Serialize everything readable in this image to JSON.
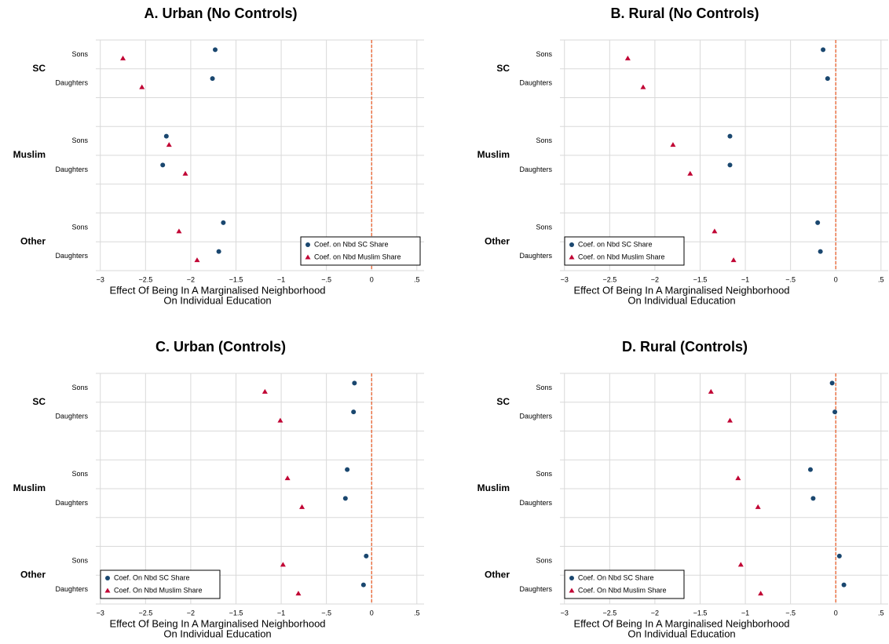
{
  "chart_data": [
    {
      "type": "dot",
      "title": "A. Urban (No Controls)",
      "groups": [
        "SC",
        "Muslim",
        "Other"
      ],
      "categories": [
        "Sons",
        "Daughters",
        "Sons",
        "Daughters",
        "Sons",
        "Daughters"
      ],
      "series": [
        {
          "name": "Coef. on Nbd SC Share",
          "color": "#1a476f",
          "marker": "circle",
          "values": [
            -1.73,
            -1.76,
            -2.27,
            -2.31,
            -1.64,
            -1.69
          ]
        },
        {
          "name": "Coef. on Nbd Muslim Share",
          "color": "#c10534",
          "marker": "triangle",
          "values": [
            -2.75,
            -2.54,
            -2.24,
            -2.06,
            -2.13,
            -1.93
          ]
        }
      ],
      "xlim": [
        -3.05,
        0.58
      ],
      "xticks": [
        {
          "value": -3,
          "label": "−3"
        },
        {
          "value": -2.5,
          "label": "−2.5"
        },
        {
          "value": -2,
          "label": "−2"
        },
        {
          "value": -1.5,
          "label": "−1.5"
        },
        {
          "value": -1,
          "label": "−1"
        },
        {
          "value": -0.5,
          "label": "−.5"
        },
        0,
        {
          "value": 0.5,
          "label": ".5"
        }
      ],
      "xlabel": [
        "Effect Of Being In A Marginalised Neighborhood",
        "On Individual Education"
      ],
      "xline": 0,
      "xline_color": "#e8551e",
      "grid": true,
      "legend": "lower right"
    },
    {
      "type": "dot",
      "title": "B. Rural (No Controls)",
      "groups": [
        "SC",
        "Muslim",
        "Other"
      ],
      "categories": [
        "Sons",
        "Daughters",
        "Sons",
        "Daughters",
        "Sons",
        "Daughters"
      ],
      "series": [
        {
          "name": "Coef. on Nbd SC Share",
          "color": "#1a476f",
          "marker": "circle",
          "values": [
            -0.14,
            -0.09,
            -1.17,
            -1.17,
            -0.2,
            -0.17
          ]
        },
        {
          "name": "Coef. on Nbd Muslim Share",
          "color": "#c10534",
          "marker": "triangle",
          "values": [
            -2.3,
            -2.13,
            -1.8,
            -1.61,
            -1.34,
            -1.13
          ]
        }
      ],
      "xlim": [
        -3.05,
        0.58
      ],
      "xticks": [
        {
          "value": -3,
          "label": "−3"
        },
        {
          "value": -2.5,
          "label": "−2.5"
        },
        {
          "value": -2,
          "label": "−2"
        },
        {
          "value": -1.5,
          "label": "−1.5"
        },
        {
          "value": -1,
          "label": "−1"
        },
        {
          "value": -0.5,
          "label": "−.5"
        },
        0,
        {
          "value": 0.5,
          "label": ".5"
        }
      ],
      "xlabel": [
        "Effect Of Being In A Marginalised Neighborhood",
        "On Individual Education"
      ],
      "xline": 0,
      "xline_color": "#e8551e",
      "grid": true,
      "legend": "lower left"
    },
    {
      "type": "dot",
      "title": "C. Urban (Controls)",
      "groups": [
        "SC",
        "Muslim",
        "Other"
      ],
      "categories": [
        "Sons",
        "Daughters",
        "Sons",
        "Daughters",
        "Sons",
        "Daughters"
      ],
      "series": [
        {
          "name": "Coef. On Nbd SC Share",
          "color": "#1a476f",
          "marker": "circle",
          "values": [
            -0.19,
            -0.2,
            -0.27,
            -0.29,
            -0.06,
            -0.09
          ]
        },
        {
          "name": "Coef. On Nbd Muslim Share",
          "color": "#c10534",
          "marker": "triangle",
          "values": [
            -1.18,
            -1.01,
            -0.93,
            -0.77,
            -0.98,
            -0.81
          ]
        }
      ],
      "xlim": [
        -3.05,
        0.58
      ],
      "xticks": [
        {
          "value": -3,
          "label": "−3"
        },
        {
          "value": -2.5,
          "label": "−2.5"
        },
        {
          "value": -2,
          "label": "−2"
        },
        {
          "value": -1.5,
          "label": "−1.5"
        },
        {
          "value": -1,
          "label": "−1"
        },
        {
          "value": -0.5,
          "label": "−.5"
        },
        0,
        {
          "value": 0.5,
          "label": ".5"
        }
      ],
      "xlabel": [
        "Effect Of Being In A Marginalised Neighborhood",
        "On Individual Education"
      ],
      "xline": 0,
      "xline_color": "#e8551e",
      "grid": true,
      "legend": "lower left"
    },
    {
      "type": "dot",
      "title": "D. Rural (Controls)",
      "groups": [
        "SC",
        "Muslim",
        "Other"
      ],
      "categories": [
        "Sons",
        "Daughters",
        "Sons",
        "Daughters",
        "Sons",
        "Daughters"
      ],
      "series": [
        {
          "name": "Coef. On Nbd SC Share",
          "color": "#1a476f",
          "marker": "circle",
          "values": [
            -0.04,
            -0.01,
            -0.28,
            -0.25,
            0.04,
            0.09
          ]
        },
        {
          "name": "Coef. On Nbd Muslim Share",
          "color": "#c10534",
          "marker": "triangle",
          "values": [
            -1.38,
            -1.17,
            -1.08,
            -0.86,
            -1.05,
            -0.83
          ]
        }
      ],
      "xlim": [
        -3.05,
        0.58
      ],
      "xticks": [
        {
          "value": -3,
          "label": "−3"
        },
        {
          "value": -2.5,
          "label": "−2.5"
        },
        {
          "value": -2,
          "label": "−2"
        },
        {
          "value": -1.5,
          "label": "−1.5"
        },
        {
          "value": -1,
          "label": "−1"
        },
        {
          "value": -0.5,
          "label": "−.5"
        },
        0,
        {
          "value": 0.5,
          "label": ".5"
        }
      ],
      "xlabel": [
        "Effect Of Being In A Marginalised Neighborhood",
        "On Individual Education"
      ],
      "xline": 0,
      "xline_color": "#e8551e",
      "grid": true,
      "legend": "lower left"
    }
  ]
}
